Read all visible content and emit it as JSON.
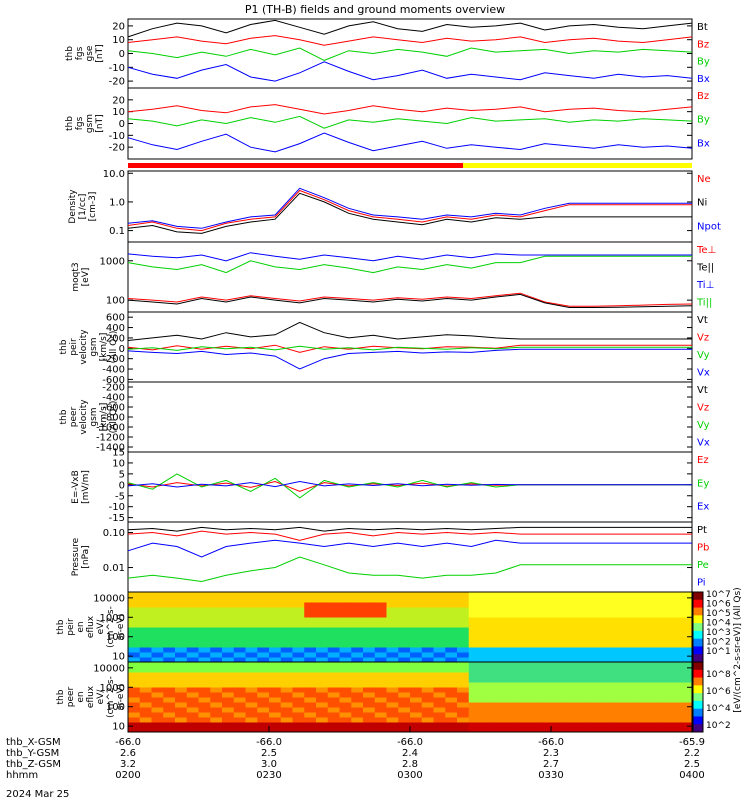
{
  "title": "P1 (TH-B) fields and ground moments overview",
  "date_label": "2024 Mar 25",
  "colors": {
    "black": "#000000",
    "red": "#ff0000",
    "green": "#00d000",
    "blue": "#0000ff",
    "yellow": "#ffff00"
  },
  "chart_data": [
    {
      "type": "line",
      "id": "p1",
      "ylabel": [
        "thb",
        "fgs",
        "gse",
        "[nT]"
      ],
      "yticks": [
        20,
        10,
        0,
        -10,
        -20
      ],
      "ylim": [
        -25,
        25
      ],
      "log": false,
      "series": [
        {
          "name": "Bt",
          "color": "#000000",
          "values": [
            12,
            18,
            22,
            20,
            15,
            21,
            24,
            19,
            14,
            20,
            23,
            18,
            16,
            21,
            19,
            20,
            22,
            17,
            20,
            21,
            19,
            18,
            20,
            22
          ]
        },
        {
          "name": "Bz",
          "color": "#ff0000",
          "values": [
            8,
            10,
            12,
            9,
            7,
            11,
            13,
            10,
            6,
            9,
            12,
            10,
            8,
            11,
            9,
            10,
            12,
            8,
            10,
            11,
            9,
            8,
            10,
            12
          ]
        },
        {
          "name": "By",
          "color": "#00d000",
          "values": [
            2,
            0,
            -3,
            1,
            -2,
            3,
            -1,
            4,
            -5,
            2,
            0,
            3,
            1,
            -2,
            4,
            1,
            2,
            3,
            0,
            2,
            1,
            3,
            2,
            1
          ]
        },
        {
          "name": "Bx",
          "color": "#0000ff",
          "values": [
            -10,
            -15,
            -18,
            -12,
            -8,
            -17,
            -20,
            -14,
            -6,
            -13,
            -19,
            -16,
            -12,
            -18,
            -15,
            -17,
            -19,
            -14,
            -16,
            -18,
            -15,
            -17,
            -16,
            -18
          ]
        }
      ]
    },
    {
      "type": "line",
      "id": "p2",
      "ylabel": [
        "thb",
        "fgs",
        "gsm",
        "[nT]"
      ],
      "yticks": [
        20,
        10,
        0,
        -10,
        -20
      ],
      "ylim": [
        -30,
        30
      ],
      "log": false,
      "series": [
        {
          "name": "Bz",
          "color": "#ff0000",
          "values": [
            10,
            12,
            15,
            11,
            9,
            14,
            16,
            12,
            8,
            11,
            15,
            12,
            10,
            13,
            11,
            12,
            14,
            10,
            12,
            13,
            11,
            10,
            12,
            14
          ]
        },
        {
          "name": "By",
          "color": "#00d000",
          "values": [
            4,
            2,
            -2,
            3,
            0,
            5,
            1,
            6,
            -4,
            3,
            1,
            4,
            2,
            0,
            5,
            2,
            3,
            4,
            1,
            3,
            2,
            4,
            3,
            2
          ]
        },
        {
          "name": "Bx",
          "color": "#0000ff",
          "values": [
            -12,
            -18,
            -22,
            -15,
            -9,
            -20,
            -24,
            -17,
            -8,
            -16,
            -23,
            -19,
            -15,
            -21,
            -18,
            -20,
            -22,
            -17,
            -19,
            -21,
            -18,
            -20,
            -19,
            -21
          ]
        }
      ]
    },
    {
      "type": "line",
      "id": "p3",
      "ylabel": [
        "Density",
        "[1/cc]",
        "[cm-3]"
      ],
      "ytick_labels": [
        "10.0",
        "1.0",
        "0.1"
      ],
      "yticks": [
        10,
        1,
        0.1
      ],
      "ylim": [
        0.04,
        12
      ],
      "log": true,
      "series": [
        {
          "name": "Ne",
          "color": "#ff0000",
          "values": [
            0.15,
            0.2,
            0.12,
            0.1,
            0.18,
            0.25,
            0.3,
            2.5,
            1.2,
            0.5,
            0.3,
            0.25,
            0.2,
            0.3,
            0.25,
            0.35,
            0.3,
            0.5,
            0.8,
            0.8,
            0.8,
            0.8,
            0.8,
            0.8
          ]
        },
        {
          "name": "Ni",
          "color": "#000000",
          "values": [
            0.12,
            0.15,
            0.09,
            0.08,
            0.14,
            0.2,
            0.25,
            2.0,
            1.0,
            0.4,
            0.25,
            0.2,
            0.16,
            0.25,
            0.2,
            0.28,
            0.25,
            0.3,
            0.3,
            0.3,
            0.3,
            0.3,
            0.3,
            0.3
          ]
        },
        {
          "name": "Npot",
          "color": "#0000ff",
          "values": [
            0.18,
            0.22,
            0.14,
            0.12,
            0.2,
            0.3,
            0.35,
            3.0,
            1.4,
            0.6,
            0.35,
            0.3,
            0.25,
            0.35,
            0.3,
            0.4,
            0.35,
            0.6,
            0.9,
            0.9,
            0.9,
            0.9,
            0.9,
            0.9
          ]
        }
      ]
    },
    {
      "type": "line",
      "id": "p4",
      "ylabel": [
        "moqt3",
        "[eV]"
      ],
      "ytick_labels": [
        "1000",
        "100"
      ],
      "yticks": [
        1000,
        100
      ],
      "ylim": [
        50,
        3000
      ],
      "log": true,
      "series": [
        {
          "name": "Te⊥",
          "color": "#ff0000",
          "values": [
            110,
            100,
            90,
            120,
            100,
            130,
            110,
            95,
            120,
            110,
            100,
            115,
            105,
            120,
            110,
            130,
            150,
            90,
            70,
            70,
            72,
            75,
            78,
            80
          ]
        },
        {
          "name": "Te||",
          "color": "#000000",
          "values": [
            100,
            90,
            80,
            110,
            90,
            120,
            100,
            85,
            110,
            100,
            90,
            105,
            95,
            110,
            100,
            120,
            140,
            85,
            65,
            65,
            66,
            68,
            70,
            72
          ]
        },
        {
          "name": "Ti⊥",
          "color": "#0000ff",
          "values": [
            1500,
            1300,
            1200,
            1400,
            1000,
            1600,
            1300,
            1100,
            1400,
            1200,
            1000,
            1300,
            1100,
            1400,
            1200,
            1500,
            1400,
            1400,
            1400,
            1400,
            1400,
            1400,
            1400,
            1400
          ]
        },
        {
          "name": "Ti||",
          "color": "#00d000",
          "values": [
            900,
            700,
            600,
            800,
            500,
            1000,
            700,
            600,
            800,
            650,
            500,
            700,
            600,
            800,
            650,
            900,
            900,
            1300,
            1300,
            1300,
            1300,
            1300,
            1300,
            1300
          ]
        }
      ]
    },
    {
      "type": "line",
      "id": "p5",
      "ylabel": [
        "thb",
        "peir",
        "velocity",
        "gsm",
        "[km/s]",
        "(All Qs)"
      ],
      "yticks": [
        600,
        400,
        200,
        0,
        -200,
        -400,
        -600
      ],
      "ylim": [
        -650,
        700
      ],
      "log": false,
      "series": [
        {
          "name": "Vt",
          "color": "#000000",
          "values": [
            150,
            200,
            250,
            180,
            300,
            220,
            260,
            500,
            300,
            200,
            250,
            180,
            220,
            260,
            240,
            200,
            180,
            180,
            180,
            180,
            180,
            180,
            180,
            180
          ]
        },
        {
          "name": "Vz",
          "color": "#ff0000",
          "values": [
            20,
            -30,
            50,
            -20,
            40,
            -10,
            60,
            -80,
            30,
            -20,
            40,
            10,
            -10,
            30,
            20,
            0,
            60,
            60,
            60,
            60,
            60,
            60,
            60,
            60
          ]
        },
        {
          "name": "Vy",
          "color": "#00d000",
          "values": [
            -20,
            10,
            -40,
            30,
            -10,
            20,
            -30,
            40,
            -20,
            10,
            -30,
            20,
            0,
            -20,
            10,
            -10,
            20,
            20,
            20,
            20,
            20,
            20,
            20,
            20
          ]
        },
        {
          "name": "Vx",
          "color": "#0000ff",
          "values": [
            -50,
            -80,
            -100,
            -60,
            -120,
            -90,
            -150,
            -400,
            -200,
            -100,
            -80,
            -60,
            -90,
            -70,
            -80,
            -40,
            -20,
            -20,
            -20,
            -20,
            -20,
            -20,
            -20,
            -20
          ]
        }
      ]
    },
    {
      "type": "line",
      "id": "p6",
      "ylabel": [
        "thb",
        "peer",
        "velocity",
        "gsm",
        "[km/s]",
        "(All Qs)"
      ],
      "yticks": [
        -200,
        -400,
        -600,
        -800,
        -1000,
        -1200,
        -1400
      ],
      "ylim": [
        -1500,
        -100
      ],
      "log": false,
      "series": [
        {
          "name": "Vt",
          "color": "#000000",
          "values": []
        },
        {
          "name": "Vz",
          "color": "#ff0000",
          "values": []
        },
        {
          "name": "Vy",
          "color": "#00d000",
          "values": []
        },
        {
          "name": "Vx",
          "color": "#0000ff",
          "values": []
        }
      ]
    },
    {
      "type": "line",
      "id": "p7",
      "ylabel": [
        "E=-VxB",
        "[mV/m]"
      ],
      "yticks": [
        15,
        10,
        5,
        0,
        -5,
        -10,
        -15
      ],
      "ylim": [
        -17,
        15
      ],
      "log": false,
      "series": [
        {
          "name": "Ez",
          "color": "#ff0000",
          "values": [
            0.5,
            -1,
            1,
            -0.5,
            0.8,
            -1.2,
            1.5,
            -3,
            1,
            -0.5,
            0.5,
            -0.3,
            0.8,
            -0.6,
            0.4,
            -0.2,
            0,
            0,
            0,
            0,
            0,
            0,
            0,
            0
          ]
        },
        {
          "name": "Ey",
          "color": "#00d000",
          "values": [
            1,
            -2,
            5,
            -1,
            2,
            -3,
            3,
            -6,
            2,
            -1,
            1,
            -1,
            2,
            -1,
            1,
            -1,
            0,
            0,
            0,
            0,
            0,
            0,
            0,
            0
          ]
        },
        {
          "name": "Ex",
          "color": "#0000ff",
          "values": [
            -0.5,
            0.5,
            -1,
            0.3,
            -0.5,
            1,
            -0.8,
            1.5,
            -0.5,
            0.4,
            -0.3,
            0.5,
            -0.4,
            0.3,
            -0.2,
            0.2,
            0,
            0,
            0,
            0,
            0,
            0,
            0,
            0
          ]
        }
      ]
    },
    {
      "type": "line",
      "id": "p8",
      "ylabel": [
        "Pressure",
        "[nPa]"
      ],
      "ytick_labels": [
        "0.10",
        "0.01"
      ],
      "yticks": [
        0.1,
        0.01
      ],
      "ylim": [
        0.002,
        0.2
      ],
      "log": true,
      "series": [
        {
          "name": "Pt",
          "color": "#000000",
          "values": [
            0.12,
            0.13,
            0.11,
            0.14,
            0.12,
            0.13,
            0.12,
            0.14,
            0.11,
            0.13,
            0.12,
            0.13,
            0.12,
            0.13,
            0.12,
            0.13,
            0.14,
            0.14,
            0.14,
            0.14,
            0.14,
            0.14,
            0.14,
            0.14
          ]
        },
        {
          "name": "Pb",
          "color": "#ff0000",
          "values": [
            0.09,
            0.1,
            0.08,
            0.11,
            0.09,
            0.1,
            0.09,
            0.06,
            0.09,
            0.1,
            0.08,
            0.1,
            0.09,
            0.1,
            0.09,
            0.1,
            0.09,
            0.09,
            0.09,
            0.09,
            0.09,
            0.09,
            0.09,
            0.09
          ]
        },
        {
          "name": "Pe",
          "color": "#00d000",
          "values": [
            0.005,
            0.006,
            0.005,
            0.004,
            0.006,
            0.008,
            0.01,
            0.02,
            0.012,
            0.007,
            0.006,
            0.006,
            0.005,
            0.006,
            0.006,
            0.007,
            0.012,
            0.012,
            0.012,
            0.012,
            0.012,
            0.012,
            0.012,
            0.012
          ]
        },
        {
          "name": "Pi",
          "color": "#0000ff",
          "values": [
            0.03,
            0.05,
            0.04,
            0.02,
            0.04,
            0.05,
            0.06,
            0.05,
            0.04,
            0.05,
            0.04,
            0.05,
            0.04,
            0.05,
            0.04,
            0.06,
            0.05,
            0.05,
            0.05,
            0.05,
            0.05,
            0.05,
            0.05,
            0.05
          ]
        }
      ]
    },
    {
      "type": "heatmap",
      "id": "p9",
      "ylabel": [
        "thb",
        "peir",
        "en",
        "eflux",
        "eV/",
        "(cm^2-s-",
        "sr-eV)"
      ],
      "ytick_labels": [
        "10000",
        "1000",
        "100",
        "10"
      ],
      "yticks": [
        10000,
        1000,
        100,
        10
      ],
      "ylim": [
        5,
        20000
      ],
      "log": true
    },
    {
      "type": "heatmap",
      "id": "p10",
      "ylabel": [
        "thb",
        "peer",
        "en",
        "eflux",
        "eV/",
        "(cm^2-s-",
        "sr-eV)"
      ],
      "ytick_labels": [
        "10000",
        "1000",
        "100",
        "10"
      ],
      "yticks": [
        10000,
        1000,
        100,
        10
      ],
      "ylim": [
        5,
        20000
      ],
      "log": true
    }
  ],
  "colorbar": {
    "label": "[eV/(cm^2-s-sr-eV)] (All Qs)",
    "ticks_top": [
      "10^7",
      "10^6",
      "10^5",
      "10^4",
      "10^3",
      "10^2",
      "10^1"
    ],
    "ticks_bottom": [
      "10^8",
      "10^6",
      "10^4",
      "10^2"
    ]
  },
  "xaxis": {
    "rows": [
      {
        "label": "thb_X-GSM",
        "values": [
          "-66.0",
          "-66.0",
          "-66.0",
          "-66.0",
          "-65.9"
        ]
      },
      {
        "label": "thb_Y-GSM",
        "values": [
          "2.6",
          "2.5",
          "2.4",
          "2.3",
          "2.2"
        ]
      },
      {
        "label": "thb_Z-GSM",
        "values": [
          "3.2",
          "3.0",
          "2.8",
          "2.7",
          "2.5"
        ]
      },
      {
        "label": "hhmm",
        "values": [
          "0200",
          "0230",
          "0300",
          "0330",
          "0400"
        ]
      }
    ]
  }
}
